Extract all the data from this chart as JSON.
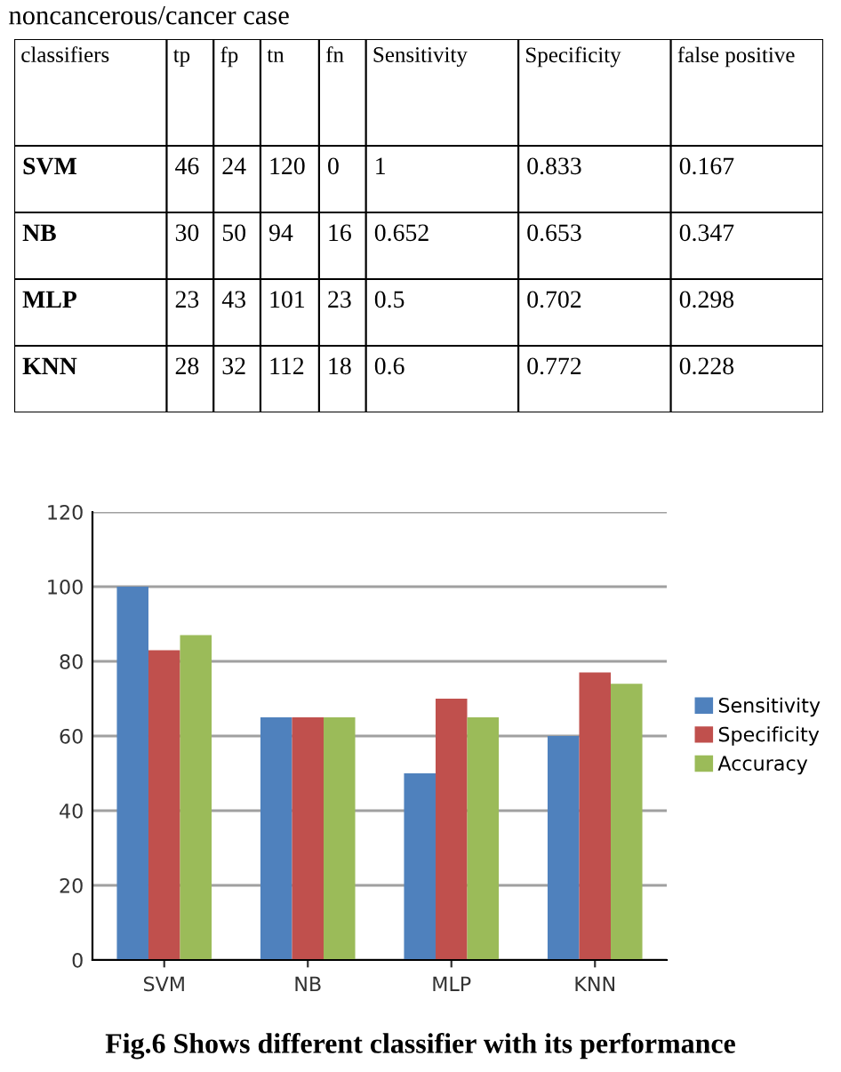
{
  "chart_data": [
    {
      "type": "other",
      "title": "noncancerous/cancer case",
      "categories": [
        "classifiers",
        "tp",
        "fp",
        "tn",
        "fn",
        "Sensitivity",
        "Specificity",
        "false positive"
      ],
      "cell_labels": [
        [
          "SVM",
          "46",
          "24",
          "120",
          "0",
          "1",
          "0.833",
          "0.167"
        ],
        [
          "NB",
          "30",
          "50",
          "94",
          "16",
          "0.652",
          "0.653",
          "0.347"
        ],
        [
          "MLP",
          "23",
          "43",
          "101",
          "23",
          "0.5",
          "0.702",
          "0.298"
        ],
        [
          "KNN",
          "28",
          "32",
          "112",
          "18",
          "0.6",
          "0.772",
          "0.228"
        ]
      ]
    },
    {
      "type": "bar",
      "categories": [
        "SVM",
        "NB",
        "MLP",
        "KNN"
      ],
      "series": [
        {
          "name": "Sensitivity",
          "color": "#4f81bd",
          "values": [
            100,
            65,
            50,
            60
          ]
        },
        {
          "name": "Specificity",
          "color": "#c0504d",
          "values": [
            83,
            65,
            70,
            77
          ]
        },
        {
          "name": "Accuracy",
          "color": "#9bbb59",
          "values": [
            87,
            65,
            65,
            74
          ]
        }
      ],
      "ylim": [
        0,
        120
      ],
      "yticks": [
        0,
        20,
        40,
        60,
        80,
        100,
        120
      ],
      "grid": "y",
      "legend": "right",
      "annotations": [
        "Fig.6 Shows different classifier with its performance"
      ]
    }
  ]
}
